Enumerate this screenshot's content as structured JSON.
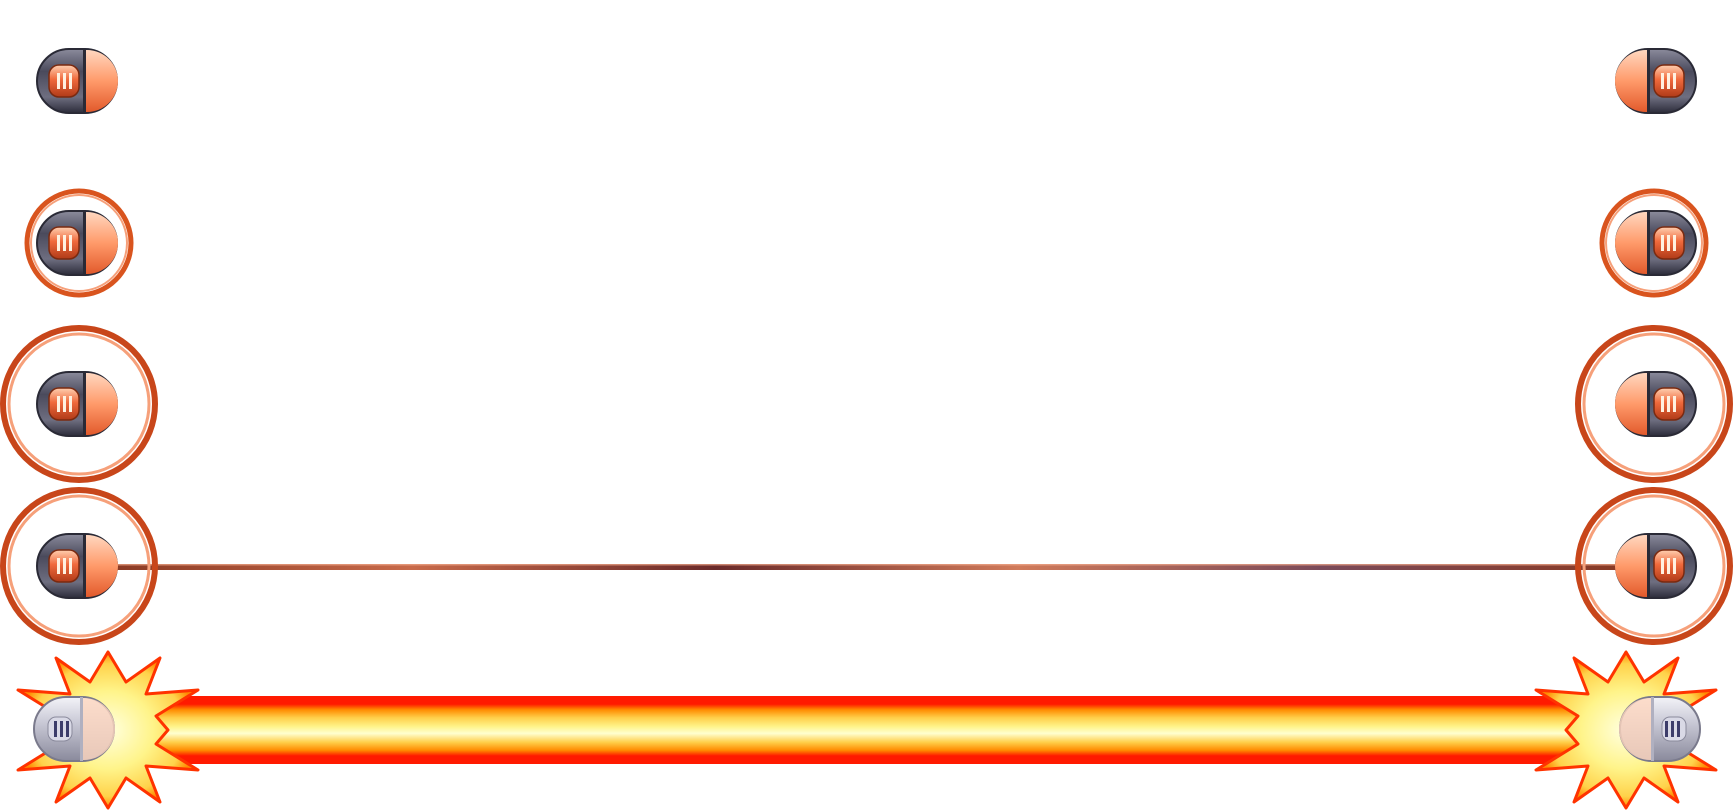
{
  "sprite_sheet": {
    "description_frames": [
      {
        "id": "idle",
        "charge_level": 0,
        "rings": 0,
        "beam": "none"
      },
      {
        "id": "charge-1",
        "charge_level": 1,
        "rings": 1,
        "beam": "none"
      },
      {
        "id": "charge-2",
        "charge_level": 2,
        "rings": 1,
        "beam": "none"
      },
      {
        "id": "charge-3",
        "charge_level": 3,
        "rings": 1,
        "beam": "thin"
      },
      {
        "id": "fire",
        "charge_level": 4,
        "rings": 0,
        "beam": "full"
      }
    ],
    "colors": {
      "emitter_dark": "#4a4a5c",
      "emitter_light": "#c9c9d6",
      "emitter_core": "#f06a3c",
      "emitter_core_light": "#ffb48a",
      "ring": "#d9541e",
      "ring_light": "#f6a07a",
      "thin_beam": "#7a3a2a",
      "beam_red": "#ff1a00",
      "beam_orange": "#ff8a00",
      "beam_yellow": "#fff27a",
      "beam_white": "#ffffd0",
      "flare_yellow": "#fff48a",
      "flare_red": "#ff3300",
      "fire_emitter": "#e6e6ef"
    }
  }
}
